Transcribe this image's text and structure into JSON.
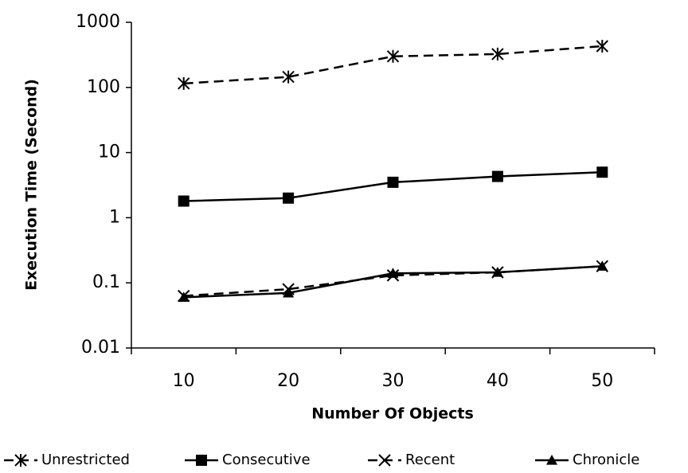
{
  "chart_data": {
    "type": "line",
    "x_label": "Number Of Objects",
    "y_label": "Execution Time (Second)",
    "categories": [
      10,
      20,
      30,
      40,
      50
    ],
    "log_scale_y": true,
    "ylim": [
      0.01,
      1000
    ],
    "yticks": [
      0.01,
      0.1,
      1,
      10,
      100,
      1000
    ],
    "legend": "bottom",
    "series": [
      {
        "name": "Unrestricted",
        "color": "#000000",
        "line_style": "dashed",
        "marker": "asterisk",
        "values": [
          115,
          145,
          300,
          325,
          430
        ]
      },
      {
        "name": "Consecutive",
        "color": "#000000",
        "line_style": "solid",
        "marker": "square",
        "values": [
          1.8,
          2.0,
          3.5,
          4.3,
          5.0
        ]
      },
      {
        "name": "Recent",
        "color": "#000000",
        "line_style": "dashed",
        "marker": "x",
        "values": [
          0.063,
          0.08,
          0.13,
          0.145,
          0.18
        ]
      },
      {
        "name": "Chronicle",
        "color": "#000000",
        "line_style": "solid",
        "marker": "triangle",
        "values": [
          0.06,
          0.07,
          0.14,
          0.145,
          0.18
        ]
      }
    ]
  }
}
